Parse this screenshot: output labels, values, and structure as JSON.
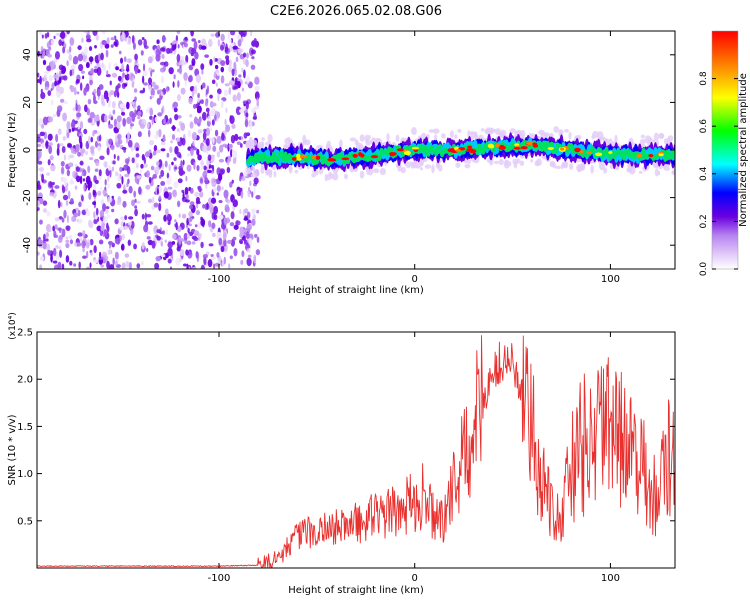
{
  "title": "C2E6.2026.065.02.08.G06",
  "chart_data": [
    {
      "type": "heatmap",
      "xlabel": "Height of straight line (km)",
      "ylabel": "Frequency (Hz)",
      "xlim": [
        -193,
        133
      ],
      "ylim": [
        -50,
        50
      ],
      "xticks": [
        -100,
        0,
        100
      ],
      "xtick_labels": [
        "-100",
        "0",
        "100"
      ],
      "yticks": [
        -40,
        -20,
        0,
        20,
        40
      ],
      "ytick_labels": [
        "-40",
        "-20",
        "0",
        "20",
        "40"
      ],
      "noise_region_end_km": -85,
      "signal_track": {
        "x": [
          -87,
          -80,
          -60,
          -40,
          -20,
          0,
          20,
          40,
          60,
          80,
          100,
          120,
          133
        ],
        "y": [
          -5,
          -3,
          -3,
          -4,
          -2,
          0,
          0,
          1,
          2,
          0,
          -2,
          -2,
          -2
        ]
      },
      "colorbar": {
        "label": "Normalized spectral amplitude",
        "range": [
          0,
          1
        ],
        "ticks": [
          0,
          0.2,
          0.4,
          0.6,
          0.8
        ],
        "tick_labels": [
          "0.0",
          "0.2",
          "0.4",
          "0.6",
          "0.8"
        ],
        "colors": [
          "#ffffff",
          "#b784f0",
          "#7a00e6",
          "#0000ff",
          "#00ffff",
          "#00ff00",
          "#ffff00",
          "#ff8000",
          "#ff0000"
        ]
      }
    },
    {
      "type": "line",
      "xlabel": "Height of straight line (km)",
      "ylabel": "SNR (10 * v/v)",
      "scale_label": "(x10⁴)",
      "xlim": [
        -193,
        133
      ],
      "ylim": [
        0,
        2.5
      ],
      "xticks": [
        -100,
        0,
        100
      ],
      "xtick_labels": [
        "-100",
        "0",
        "100"
      ],
      "yticks": [
        0.5,
        1.0,
        1.5,
        2.0,
        2.5
      ],
      "ytick_labels": [
        "0.5",
        "1.0",
        "1.5",
        "2.0",
        "2.5"
      ],
      "series": [
        {
          "name": "SNR",
          "color": "#e8312f",
          "x": [
            -193,
            -150,
            -100,
            -80,
            -70,
            -65,
            -60,
            -50,
            -40,
            -30,
            -20,
            -10,
            0,
            5,
            10,
            15,
            20,
            25,
            30,
            35,
            40,
            45,
            50,
            55,
            60,
            65,
            70,
            75,
            80,
            85,
            90,
            95,
            100,
            105,
            110,
            115,
            120,
            125,
            130,
            133
          ],
          "y": [
            0.02,
            0.02,
            0.02,
            0.03,
            0.1,
            0.25,
            0.35,
            0.42,
            0.45,
            0.5,
            0.58,
            0.62,
            0.75,
            0.8,
            0.55,
            0.5,
            0.95,
            1.2,
            1.55,
            1.85,
            2.1,
            2.2,
            2.2,
            1.85,
            1.5,
            1.05,
            0.7,
            0.55,
            1.1,
            1.35,
            1.45,
            1.5,
            1.5,
            1.45,
            1.35,
            1.2,
            0.85,
            0.8,
            1.3,
            1.15
          ]
        }
      ]
    }
  ]
}
